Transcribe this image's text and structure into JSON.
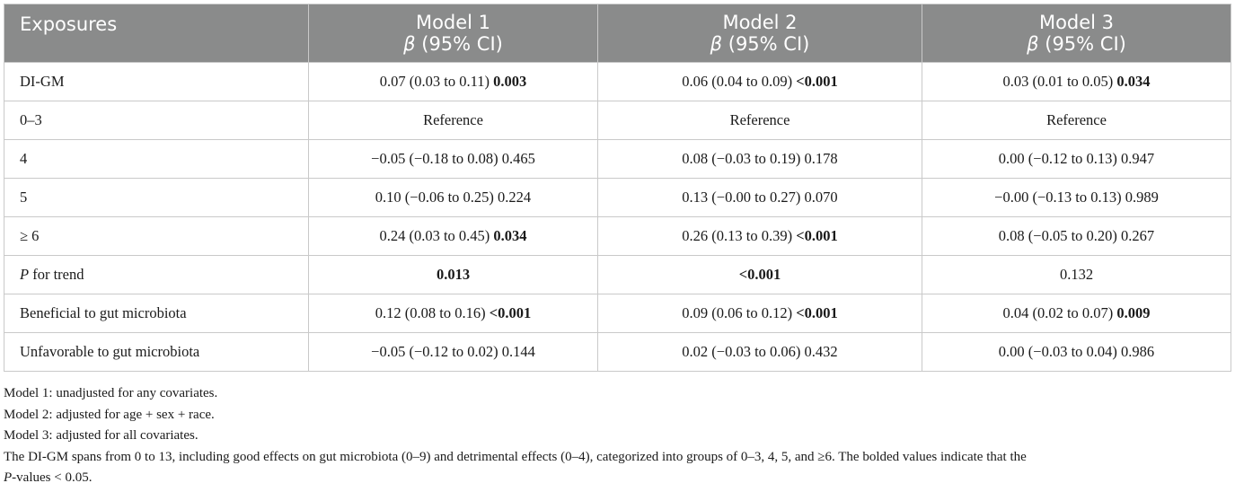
{
  "table": {
    "header": {
      "exposures": "Exposures",
      "models": [
        {
          "name": "Model 1",
          "beta": "β",
          "ci": "(95% CI)"
        },
        {
          "name": "Model 2",
          "beta": "β",
          "ci": "(95% CI)"
        },
        {
          "name": "Model 3",
          "beta": "β",
          "ci": "(95% CI)"
        }
      ]
    },
    "rows": [
      {
        "label": "DI-GM",
        "label_italic": "",
        "cells": [
          {
            "value": "0.07 (0.03 to 0.11) ",
            "bold": "0.003"
          },
          {
            "value": "0.06 (0.04 to 0.09) ",
            "bold": "<0.001"
          },
          {
            "value": "0.03 (0.01 to 0.05) ",
            "bold": "0.034"
          }
        ]
      },
      {
        "label": "0–3",
        "label_italic": "",
        "cells": [
          {
            "value": "Reference",
            "bold": ""
          },
          {
            "value": "Reference",
            "bold": ""
          },
          {
            "value": "Reference",
            "bold": ""
          }
        ]
      },
      {
        "label": "4",
        "label_italic": "",
        "cells": [
          {
            "value": "−0.05 (−0.18 to 0.08) 0.465",
            "bold": ""
          },
          {
            "value": "0.08 (−0.03 to 0.19) 0.178",
            "bold": ""
          },
          {
            "value": "0.00 (−0.12 to 0.13) 0.947",
            "bold": ""
          }
        ]
      },
      {
        "label": "5",
        "label_italic": "",
        "cells": [
          {
            "value": "0.10 (−0.06 to 0.25) 0.224",
            "bold": ""
          },
          {
            "value": "0.13 (−0.00 to 0.27) 0.070",
            "bold": ""
          },
          {
            "value": "−0.00 (−0.13 to 0.13) 0.989",
            "bold": ""
          }
        ]
      },
      {
        "label": "≥ 6",
        "label_italic": "",
        "cells": [
          {
            "value": "0.24 (0.03 to 0.45) ",
            "bold": "0.034"
          },
          {
            "value": "0.26 (0.13 to 0.39) ",
            "bold": "<0.001"
          },
          {
            "value": "0.08 (−0.05 to 0.20) 0.267",
            "bold": ""
          }
        ]
      },
      {
        "label": " for trend",
        "label_italic": "P",
        "cells": [
          {
            "value": "",
            "bold": "0.013"
          },
          {
            "value": "",
            "bold": "<0.001"
          },
          {
            "value": "0.132",
            "bold": ""
          }
        ]
      },
      {
        "label": "Beneficial to gut microbiota",
        "label_italic": "",
        "cells": [
          {
            "value": "0.12 (0.08 to 0.16) ",
            "bold": "<0.001"
          },
          {
            "value": "0.09 (0.06 to 0.12) ",
            "bold": "<0.001"
          },
          {
            "value": "0.04 (0.02 to 0.07) ",
            "bold": "0.009"
          }
        ]
      },
      {
        "label": "Unfavorable to gut microbiota",
        "label_italic": "",
        "cells": [
          {
            "value": "−0.05 (−0.12 to 0.02) 0.144",
            "bold": ""
          },
          {
            "value": "0.02 (−0.03 to 0.06) 0.432",
            "bold": ""
          },
          {
            "value": "0.00 (−0.03 to 0.04) 0.986",
            "bold": ""
          }
        ]
      }
    ]
  },
  "footnotes": {
    "model1": "Model 1: unadjusted for any covariates.",
    "model2": "Model 2: adjusted for age + sex + race.",
    "model3": "Model 3: adjusted for all covariates.",
    "digm_line1": "The DI-GM spans from 0 to 13, including good effects on gut microbiota (0–9) and detrimental effects (0–4), categorized into groups of 0–3, 4, 5, and ≥6. The bolded values indicate that the",
    "digm_line2_italic": "P",
    "digm_line2_rest": "-values < 0.05."
  },
  "colors": {
    "header_bg": "#8a8b8b",
    "header_text": "#ffffff",
    "border": "#c9c9c9"
  }
}
